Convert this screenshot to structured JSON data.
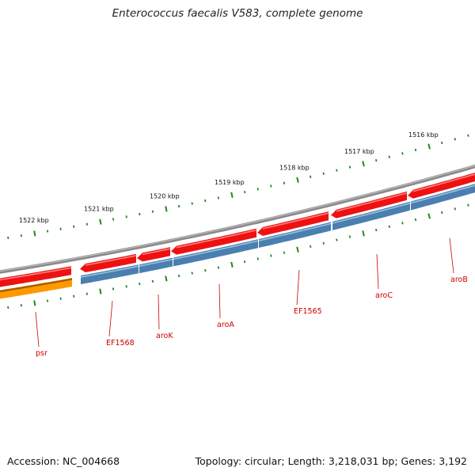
{
  "header": {
    "title": "Enterococcus faecalis V583, complete genome"
  },
  "footer": {
    "accession": "Accession: NC_004668",
    "summary": "Topology: circular; Length: 3,218,031 bp; Genes: 3,192"
  },
  "map": {
    "position_labels": [
      "1522 kbp",
      "1521 kbp",
      "1520 kbp",
      "1519 kbp",
      "1518 kbp",
      "1517 kbp",
      "1516 kbp"
    ],
    "genes": [
      {
        "name": "psr"
      },
      {
        "name": "EF1568"
      },
      {
        "name": "aroK"
      },
      {
        "name": "aroA"
      },
      {
        "name": "EF1565"
      },
      {
        "name": "aroC"
      },
      {
        "name": "aroB"
      }
    ],
    "colors": {
      "backbone": "#8a8a8a",
      "cds_red": "#ee1111",
      "cds_red_light": "#ff8080",
      "gene_blue": "#4a7fb0",
      "gene_blue_light": "#9cc0df",
      "psr_orange": "#ff9900",
      "psr_brown": "#a05a00",
      "tick_green": "#1f8a1f",
      "label_red": "#cc0000"
    }
  }
}
